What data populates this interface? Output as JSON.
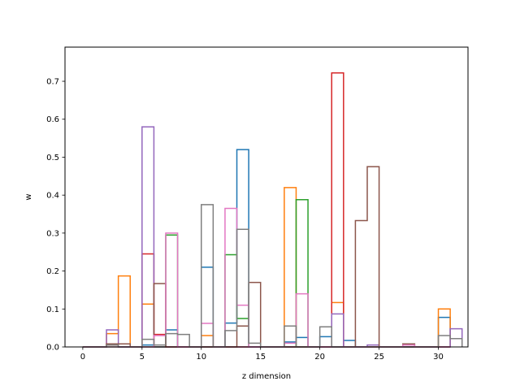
{
  "chart_data": {
    "type": "bar",
    "style": "step-histogram",
    "xlabel": "z dimension",
    "ylabel": "w",
    "xlim": [
      -1.5,
      32.5
    ],
    "ylim": [
      0,
      0.79
    ],
    "bin_width": 1,
    "xticks": [
      0,
      5,
      10,
      15,
      20,
      25,
      30
    ],
    "yticks": [
      0.0,
      0.1,
      0.2,
      0.3,
      0.4,
      0.5,
      0.6,
      0.7
    ],
    "grid": false,
    "series": [
      {
        "color": "#1f77b4",
        "bins": [
          [
            2,
            0.005
          ],
          [
            5,
            0.005
          ],
          [
            7,
            0.045
          ],
          [
            10,
            0.21
          ],
          [
            12,
            0.063
          ],
          [
            13,
            0.52
          ],
          [
            17,
            0.013
          ],
          [
            18,
            0.025
          ],
          [
            20,
            0.027
          ],
          [
            22,
            0.017
          ],
          [
            30,
            0.078
          ]
        ]
      },
      {
        "color": "#ff7f0e",
        "bins": [
          [
            2,
            0.035
          ],
          [
            3,
            0.187
          ],
          [
            5,
            0.113
          ],
          [
            10,
            0.03
          ],
          [
            17,
            0.42
          ],
          [
            21,
            0.117
          ],
          [
            30,
            0.1
          ]
        ]
      },
      {
        "color": "#2ca02c",
        "bins": [
          [
            7,
            0.295
          ],
          [
            12,
            0.243
          ],
          [
            13,
            0.075
          ],
          [
            18,
            0.388
          ]
        ]
      },
      {
        "color": "#d62728",
        "bins": [
          [
            2,
            0.005
          ],
          [
            5,
            0.245
          ],
          [
            6,
            0.033
          ],
          [
            21,
            0.722
          ]
        ]
      },
      {
        "color": "#9467bd",
        "bins": [
          [
            2,
            0.045
          ],
          [
            5,
            0.58
          ],
          [
            21,
            0.087
          ],
          [
            24,
            0.005
          ],
          [
            31,
            0.048
          ]
        ]
      },
      {
        "color": "#8c564b",
        "bins": [
          [
            2,
            0.008
          ],
          [
            3,
            0.008
          ],
          [
            6,
            0.167
          ],
          [
            13,
            0.055
          ],
          [
            14,
            0.17
          ],
          [
            23,
            0.333
          ],
          [
            24,
            0.475
          ],
          [
            27,
            0.008
          ]
        ]
      },
      {
        "color": "#e377c2",
        "bins": [
          [
            6,
            0.03
          ],
          [
            7,
            0.3
          ],
          [
            10,
            0.062
          ],
          [
            12,
            0.365
          ],
          [
            13,
            0.11
          ],
          [
            17,
            0.01
          ],
          [
            18,
            0.14
          ],
          [
            27,
            0.005
          ]
        ]
      },
      {
        "color": "#7f7f7f",
        "bins": [
          [
            2,
            0.005
          ],
          [
            5,
            0.02
          ],
          [
            6,
            0.005
          ],
          [
            7,
            0.035
          ],
          [
            8,
            0.033
          ],
          [
            10,
            0.375
          ],
          [
            12,
            0.043
          ],
          [
            13,
            0.31
          ],
          [
            14,
            0.01
          ],
          [
            17,
            0.055
          ],
          [
            20,
            0.053
          ],
          [
            30,
            0.03
          ],
          [
            31,
            0.022
          ]
        ]
      }
    ]
  }
}
